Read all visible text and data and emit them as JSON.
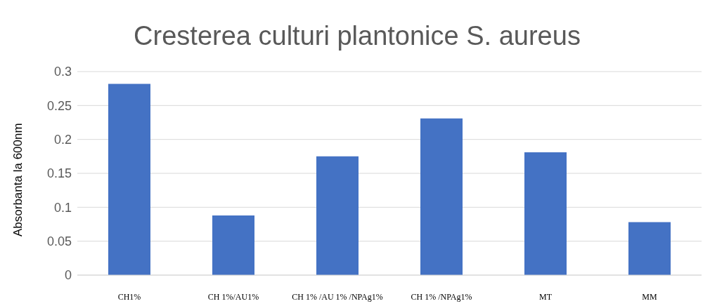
{
  "chart_data": {
    "type": "bar",
    "title": "Cresterea culturi plantonice S. aureus",
    "ylabel": "Absorbanta la 600nm",
    "categories": [
      "CH1%",
      "CH 1%/AU1%",
      "CH 1% /AU 1% /NPAg1%",
      "CH 1% /NPAg1%",
      "MT",
      "MM"
    ],
    "values": [
      0.282,
      0.088,
      0.175,
      0.231,
      0.181,
      0.078
    ],
    "color": "#4472c4",
    "ylim": [
      0,
      0.3
    ],
    "yticks": [
      0,
      0.05,
      0.1,
      0.15,
      0.2,
      0.25,
      0.3
    ],
    "grid": "y"
  }
}
